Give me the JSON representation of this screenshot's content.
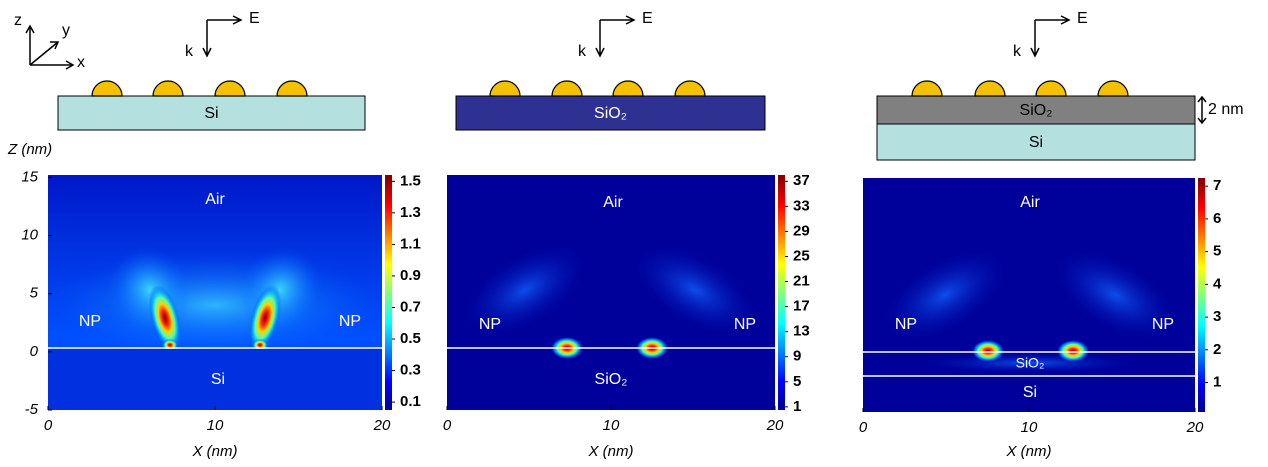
{
  "axes": {
    "z": "z",
    "y": "y",
    "x": "x"
  },
  "panels": [
    {
      "k": "k",
      "E": "E",
      "substrate": [
        "Si"
      ],
      "air": "Air",
      "np_left": "NP",
      "np_right": "NP",
      "below": [
        "Si"
      ],
      "ylabel": "Z (nm)",
      "ylim": [
        -5,
        15.2
      ],
      "yticks": [
        -5,
        0,
        5,
        10,
        15
      ],
      "xlim": [
        0,
        20
      ],
      "xticks": [
        0,
        10,
        20
      ],
      "xlabel": "X (nm)",
      "clim": [
        0.05,
        1.54
      ],
      "cticks": [
        0.1,
        0.3,
        0.5,
        0.7,
        0.9,
        1.1,
        1.3,
        1.5
      ]
    },
    {
      "k": "k",
      "E": "E",
      "substrate": [
        "SiO₂"
      ],
      "air": "Air",
      "np_left": "NP",
      "np_right": "NP",
      "below": [
        "SiO₂"
      ],
      "xlim": [
        0,
        20
      ],
      "xticks": [
        0,
        10,
        20
      ],
      "xlabel": "X (nm)",
      "clim": [
        0.5,
        38
      ],
      "cticks": [
        1,
        5,
        9,
        13,
        17,
        21,
        25,
        29,
        33,
        37
      ]
    },
    {
      "k": "k",
      "E": "E",
      "substrate": [
        "SiO₂",
        "Si"
      ],
      "thickness": "2 nm",
      "air": "Air",
      "np_left": "NP",
      "np_right": "NP",
      "below": [
        "SiO₂",
        "Si"
      ],
      "xlim": [
        0,
        20
      ],
      "xticks": [
        0,
        10,
        20
      ],
      "xlabel": "X (nm)",
      "clim": [
        0.1,
        7.25
      ],
      "cticks": [
        1,
        2,
        3,
        4,
        5,
        6,
        7
      ]
    }
  ]
}
